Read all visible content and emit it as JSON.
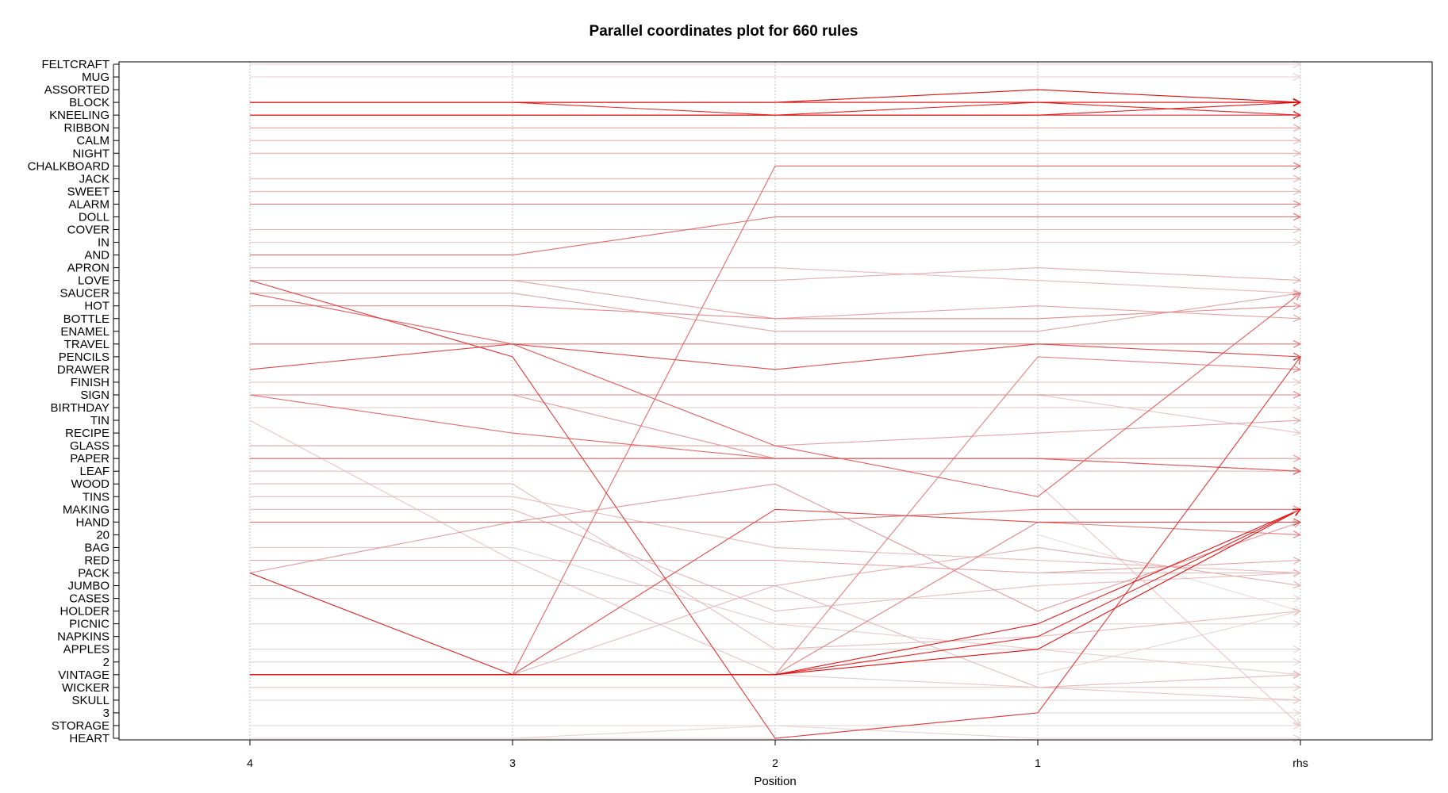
{
  "chart_data": {
    "type": "parallel_coordinates",
    "title": "Parallel coordinates plot for 660 rules",
    "xlabel": "Position",
    "x_categories": [
      "4",
      "3",
      "2",
      "1",
      "rhs"
    ],
    "y_categories": [
      "FELTCRAFT",
      "MUG",
      "ASSORTED",
      "BLOCK",
      "KNEELING",
      "RIBBON",
      "CALM",
      "NIGHT",
      "CHALKBOARD",
      "JACK",
      "SWEET",
      "ALARM",
      "DOLL",
      "COVER",
      "IN",
      "AND",
      "APRON",
      "LOVE",
      "SAUCER",
      "HOT",
      "BOTTLE",
      "ENAMEL",
      "TRAVEL",
      "PENCILS",
      "DRAWER",
      "FINISH",
      "SIGN",
      "BIRTHDAY",
      "TIN",
      "RECIPE",
      "GLASS",
      "PAPER",
      "LEAF",
      "WOOD",
      "TINS",
      "MAKING",
      "HAND",
      "20",
      "BAG",
      "RED",
      "PACK",
      "JUMBO",
      "CASES",
      "HOLDER",
      "PICNIC",
      "NAPKINS",
      "APPLES",
      "2",
      "VINTAGE",
      "WICKER",
      "SKULL",
      "3",
      "STORAGE",
      "HEART"
    ],
    "rule_count": 660,
    "color_scale": {
      "low": "#e8e8e8",
      "high": "#e00000"
    },
    "lines": [
      {
        "path": [
          "SIGN",
          "SIGN",
          "PAPER",
          "PAPER",
          "PAPER"
        ],
        "intensity": 0.35
      },
      {
        "path": [
          "SIGN",
          "RECIPE"
        ],
        "intensity": 0.15
      },
      {
        "path": [
          "WOOD",
          "STORAGE"
        ],
        "intensity": 0.15
      },
      {
        "path": [
          "PACK",
          "VINTAGE",
          "VINTAGE",
          "PICNIC",
          "MAKING"
        ],
        "intensity": 0.9
      },
      {
        "path": [
          "PACK",
          "PACK"
        ],
        "intensity": 0.2
      },
      {
        "path": [
          "VINTAGE",
          "HOLDER"
        ],
        "intensity": 0.08
      },
      {
        "path": [
          "20",
          "HOLDER"
        ],
        "intensity": 0.05
      },
      {
        "path": [
          "LOVE",
          "PENCILS",
          "HEART",
          "3",
          "PENCILS"
        ],
        "intensity": 0.75
      },
      {
        "path": [
          "SAUCER",
          "TRAVEL",
          "GLASS",
          "TINS",
          "SAUCER"
        ],
        "intensity": 0.6
      },
      {
        "path": [
          "TRAVEL",
          "TRAVEL",
          "TRAVEL",
          "TRAVEL",
          "TRAVEL"
        ],
        "intensity": 0.5
      },
      {
        "path": [
          "DRAWER",
          "TRAVEL",
          "DRAWER",
          "TRAVEL",
          "PENCILS"
        ],
        "intensity": 0.7
      },
      {
        "path": [
          "SIGN",
          "SIGN",
          "SIGN",
          "SIGN",
          "SIGN"
        ],
        "intensity": 0.45
      },
      {
        "path": [
          "SIGN",
          "RECIPE",
          "PAPER",
          "PAPER",
          "LEAF"
        ],
        "intensity": 0.55
      },
      {
        "path": [
          "PAPER",
          "PAPER",
          "PAPER",
          "PAPER",
          "LEAF"
        ],
        "intensity": 0.6
      },
      {
        "path": [
          "LOVE",
          "LOVE",
          "LOVE",
          "APRON",
          "LOVE"
        ],
        "intensity": 0.25
      },
      {
        "path": [
          "PACK",
          "HAND",
          "WOOD",
          "HOLDER",
          "HAND"
        ],
        "intensity": 0.35
      },
      {
        "path": [
          "VINTAGE",
          "VINTAGE",
          "VINTAGE",
          "APPLES",
          "MAKING"
        ],
        "intensity": 0.95
      },
      {
        "path": [
          "VINTAGE",
          "VINTAGE",
          "VINTAGE",
          "NAPKINS",
          "MAKING"
        ],
        "intensity": 0.85
      },
      {
        "path": [
          "VINTAGE",
          "VINTAGE",
          "MAKING",
          "HAND",
          "HAND"
        ],
        "intensity": 0.7
      },
      {
        "path": [
          "VINTAGE",
          "VINTAGE",
          "JUMBO",
          "WICKER",
          "VINTAGE"
        ],
        "intensity": 0.2
      },
      {
        "path": [
          "VINTAGE",
          "VINTAGE",
          "CHALKBOARD",
          "CHALKBOARD",
          "CHALKBOARD"
        ],
        "intensity": 0.55
      },
      {
        "path": [
          "VINTAGE",
          "VINTAGE",
          "VINTAGE",
          "PENCILS",
          "DRAWER"
        ],
        "intensity": 0.45
      },
      {
        "path": [
          "VINTAGE",
          "VINTAGE",
          "VINTAGE",
          "HAND",
          "20"
        ],
        "intensity": 0.45
      },
      {
        "path": [
          "HEART",
          "HEART",
          "STORAGE",
          "HEART",
          "HEART"
        ],
        "intensity": 0.1
      },
      {
        "path": [
          "WOOD",
          "WOOD",
          "APPLES",
          "NAPKINS",
          "HOLDER"
        ],
        "intensity": 0.2
      },
      {
        "path": [
          "MAKING",
          "MAKING",
          "HOLDER",
          "JUMBO",
          "PACK"
        ],
        "intensity": 0.2
      },
      {
        "path": [
          "TIN",
          "RED",
          "VINTAGE",
          "WICKER",
          "SKULL"
        ],
        "intensity": 0.15
      },
      {
        "path": [
          "TINS",
          "TINS",
          "BAG",
          "RED",
          "PACK"
        ],
        "intensity": 0.2
      },
      {
        "path": [
          "BAG",
          "BAG",
          "PICNIC",
          "APPLES",
          "VINTAGE"
        ],
        "intensity": 0.12
      },
      {
        "path": [
          "JUMBO",
          "JUMBO",
          "JUMBO",
          "BAG",
          "JUMBO"
        ],
        "intensity": 0.25
      },
      {
        "path": [
          "HAND",
          "HAND",
          "HAND",
          "MAKING",
          "MAKING"
        ],
        "intensity": 0.5
      },
      {
        "path": [
          "RED",
          "RED",
          "RED",
          "PACK",
          "RED"
        ],
        "intensity": 0.3
      },
      {
        "path": [
          "GLASS",
          "GLASS",
          "GLASS",
          "RECIPE",
          "TIN"
        ],
        "intensity": 0.3
      },
      {
        "path": [
          "SAUCER",
          "SAUCER",
          "ENAMEL",
          "ENAMEL",
          "SAUCER"
        ],
        "intensity": 0.3
      },
      {
        "path": [
          "HOT",
          "HOT",
          "BOTTLE",
          "BOTTLE",
          "HOT"
        ],
        "intensity": 0.4
      },
      {
        "path": [
          "LOVE",
          "LOVE",
          "BOTTLE",
          "HOT",
          "BOTTLE"
        ],
        "intensity": 0.3
      },
      {
        "path": [
          "APRON",
          "APRON",
          "APRON",
          "LOVE",
          "SAUCER"
        ],
        "intensity": 0.2
      },
      {
        "path": [
          "AND",
          "AND",
          "DOLL",
          "DOLL",
          "DOLL"
        ],
        "intensity": 0.55
      },
      {
        "path": [
          "ALARM",
          "ALARM",
          "ALARM",
          "ALARM",
          "ALARM"
        ],
        "intensity": 0.45
      },
      {
        "path": [
          "BLOCK",
          "BLOCK",
          "BLOCK",
          "BLOCK",
          "BLOCK"
        ],
        "intensity": 1.0
      },
      {
        "path": [
          "BLOCK",
          "BLOCK",
          "BLOCK",
          "ASSORTED",
          "BLOCK"
        ],
        "intensity": 0.95
      },
      {
        "path": [
          "KNEELING",
          "KNEELING",
          "KNEELING",
          "KNEELING",
          "BLOCK"
        ],
        "intensity": 0.9
      },
      {
        "path": [
          "KNEELING",
          "KNEELING",
          "KNEELING",
          "BLOCK",
          "KNEELING"
        ],
        "intensity": 0.85
      },
      {
        "path": [
          "BLOCK",
          "BLOCK",
          "KNEELING",
          "KNEELING",
          "KNEELING"
        ],
        "intensity": 0.8
      },
      {
        "path": [
          "RIBBON",
          "RIBBON",
          "RIBBON",
          "RIBBON",
          "RIBBON"
        ],
        "intensity": 0.3
      },
      {
        "path": [
          "CALM",
          "CALM",
          "CALM",
          "CALM",
          "CALM"
        ],
        "intensity": 0.25
      },
      {
        "path": [
          "NIGHT",
          "NIGHT",
          "NIGHT",
          "NIGHT",
          "NIGHT"
        ],
        "intensity": 0.25
      },
      {
        "path": [
          "JACK",
          "JACK",
          "JACK",
          "JACK",
          "JACK"
        ],
        "intensity": 0.25
      },
      {
        "path": [
          "SWEET",
          "SWEET",
          "SWEET",
          "SWEET",
          "SWEET"
        ],
        "intensity": 0.2
      },
      {
        "path": [
          "COVER",
          "COVER",
          "COVER",
          "COVER",
          "COVER"
        ],
        "intensity": 0.2
      },
      {
        "path": [
          "IN",
          "IN",
          "IN",
          "IN",
          "IN"
        ],
        "intensity": 0.15
      },
      {
        "path": [
          "HEART",
          "HEART",
          "HEART",
          "3",
          "3"
        ],
        "intensity": 0.1
      },
      {
        "path": [
          "STORAGE",
          "STORAGE",
          "STORAGE",
          "STORAGE",
          "STORAGE"
        ],
        "intensity": 0.1
      },
      {
        "path": [
          "SKULL",
          "SKULL",
          "SKULL",
          "SKULL",
          "SKULL"
        ],
        "intensity": 0.1
      },
      {
        "path": [
          "WICKER",
          "WICKER",
          "WICKER",
          "WICKER",
          "WICKER"
        ],
        "intensity": 0.15
      },
      {
        "path": [
          "2",
          "2",
          "2",
          "2",
          "2"
        ],
        "intensity": 0.1
      },
      {
        "path": [
          "APPLES",
          "APPLES",
          "APPLES",
          "APPLES",
          "APPLES"
        ],
        "intensity": 0.1
      },
      {
        "path": [
          "PICNIC",
          "PICNIC",
          "PICNIC",
          "PICNIC",
          "PICNIC"
        ],
        "intensity": 0.1
      },
      {
        "path": [
          "CASES",
          "CASES",
          "CASES",
          "CASES",
          "CASES"
        ],
        "intensity": 0.1
      },
      {
        "path": [
          "FINISH",
          "FINISH",
          "FINISH",
          "FINISH",
          "FINISH"
        ],
        "intensity": 0.15
      },
      {
        "path": [
          "BIRTHDAY",
          "BIRTHDAY",
          "BIRTHDAY",
          "BIRTHDAY",
          "BIRTHDAY"
        ],
        "intensity": 0.15
      },
      {
        "path": [
          "LEAF",
          "LEAF",
          "LEAF",
          "LEAF",
          "LEAF"
        ],
        "intensity": 0.2
      },
      {
        "path": [
          "MUG",
          "MUG",
          "MUG",
          "MUG",
          "MUG"
        ],
        "intensity": 0.1
      },
      {
        "path": [
          "FELTCRAFT",
          "FELTCRAFT",
          "FELTCRAFT",
          "FELTCRAFT",
          "FELTCRAFT"
        ],
        "intensity": 0.1
      }
    ]
  }
}
